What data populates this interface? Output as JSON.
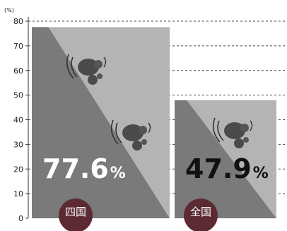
{
  "chart_data": {
    "type": "bar",
    "unit": "(%)",
    "categories": [
      "四国",
      "全国"
    ],
    "values": [
      77.6,
      47.9
    ],
    "value_labels": [
      "77.6",
      "47.9"
    ],
    "value_suffix": "%",
    "yticks": [
      0,
      10,
      20,
      30,
      40,
      50,
      60,
      70,
      80
    ],
    "ylim": [
      0,
      80
    ],
    "grid": true,
    "colors": {
      "bar_dark": "#7a7a7a",
      "bar_light": "#b4b4b4",
      "badge": "#5b2a33",
      "label_sikoku": "#ffffff",
      "label_zenkoku": "#111111",
      "grid": "#444444"
    },
    "icons": [
      "landslide-rocks-icon",
      "landslide-rocks-icon"
    ]
  }
}
